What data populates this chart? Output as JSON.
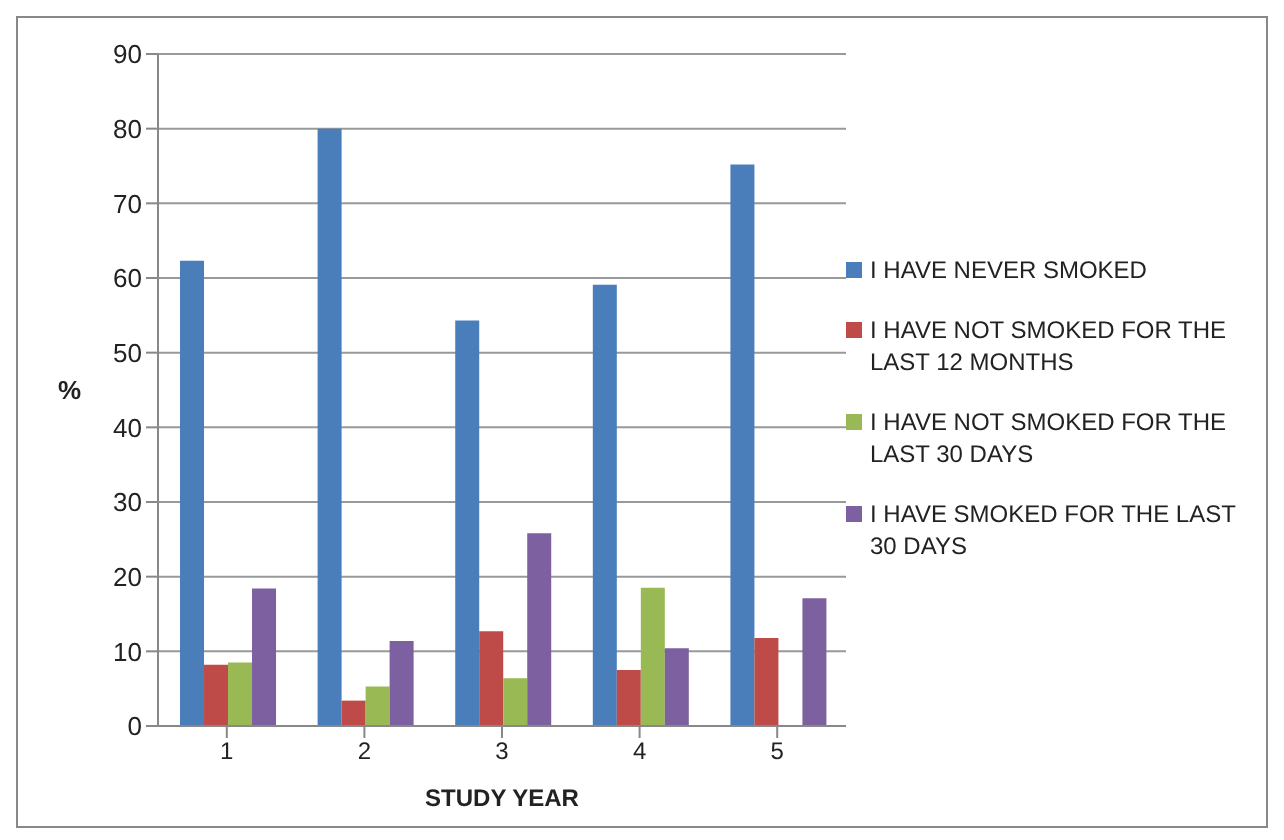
{
  "chart_data": {
    "type": "bar",
    "xlabel": "STUDY YEAR",
    "ylabel": "%",
    "categories": [
      "1",
      "2",
      "3",
      "4",
      "5"
    ],
    "series": [
      {
        "name": "I HAVE NEVER SMOKED",
        "color": "#4a7ebb",
        "values": [
          62.3,
          80,
          54.3,
          59.1,
          75.2
        ]
      },
      {
        "name": "I HAVE NOT SMOKED FOR THE LAST 12 MONTHS",
        "color": "#be4b48",
        "values": [
          8.2,
          3.4,
          12.7,
          7.5,
          11.8
        ]
      },
      {
        "name": "I HAVE NOT SMOKED FOR THE LAST 30 DAYS",
        "color": "#98b954",
        "values": [
          8.5,
          5.3,
          6.4,
          18.5,
          null
        ]
      },
      {
        "name": "I HAVE SMOKED FOR THE LAST 30 DAYS",
        "color": "#7d60a0",
        "values": [
          18.4,
          11.4,
          25.8,
          10.4,
          17.1
        ]
      }
    ],
    "ylim": [
      0,
      90
    ],
    "yticks": [
      0,
      10,
      20,
      30,
      40,
      50,
      60,
      70,
      80,
      90
    ],
    "grid": "y",
    "legend": "right"
  }
}
